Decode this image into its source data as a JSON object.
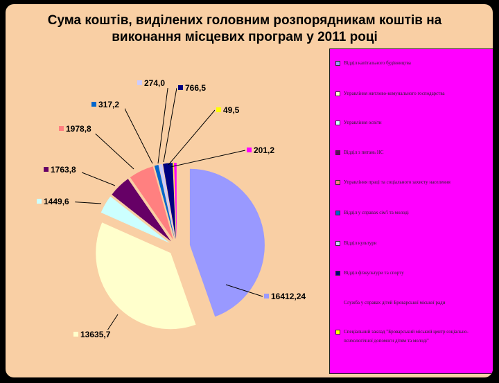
{
  "chart_data": {
    "type": "pie",
    "title": [
      "Сума коштів, виділених головним розпорядникам коштів на",
      "виконання місцевих програм у 2011 році"
    ],
    "slices": [
      {
        "value": 16412.24,
        "label": "16412,24",
        "color": "#9999ff"
      },
      {
        "value": 13635.7,
        "label": "13635,7",
        "color": "#ffffcc"
      },
      {
        "value": 1449.6,
        "label": "1449,6",
        "color": "#ccffff"
      },
      {
        "value": 1763.8,
        "label": "1763,8",
        "color": "#660066"
      },
      {
        "value": 1978.8,
        "label": "1978,8",
        "color": "#ff8080"
      },
      {
        "value": 317.2,
        "label": "317,2",
        "color": "#0066cc"
      },
      {
        "value": 274.0,
        "label": "274,0",
        "color": "#ccccff"
      },
      {
        "value": 766.5,
        "label": "766,5",
        "color": "#000080"
      },
      {
        "value": 49.5,
        "label": "49,5",
        "color": "#ffff00"
      },
      {
        "value": 201.2,
        "label": "201,2",
        "color": "#ff00ff"
      }
    ],
    "legend": {
      "position": "right",
      "items": [
        {
          "text": "Відділ капітального будівництва",
          "color": "#9999ff"
        },
        {
          "text": "Управління житлово-комунального господарства",
          "color": "#ffffcc"
        },
        {
          "text": "Управління освіти",
          "color": "#ccffff"
        },
        {
          "text": "Відділ з питань НС",
          "color": "#660066"
        },
        {
          "text": "Управління праці та соціального захисту населення",
          "color": "#ff8080"
        },
        {
          "text": "Відділ у справах сім'ї та молоді",
          "color": "#0066cc"
        },
        {
          "text": "Відділ культури",
          "color": "#ccccff"
        },
        {
          "text": "Відділ фізкультури та спорту",
          "color": "#000080"
        },
        {
          "text": "Служба у справах дітей Броварської міської ради",
          "color": ""
        },
        {
          "text": "Спеціальний заклад \"Броварський міський центр соціально-психологічної допомоги дітям та молоді\"",
          "color": "#ffff00"
        }
      ]
    }
  }
}
